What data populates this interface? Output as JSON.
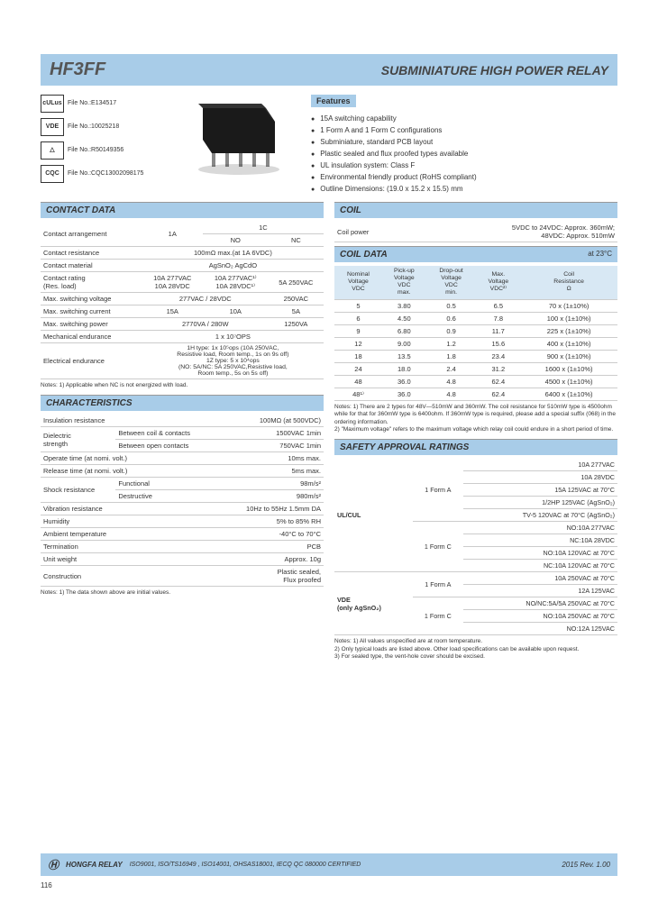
{
  "header": {
    "part_number": "HF3FF",
    "subtitle": "SUBMINIATURE HIGH POWER RELAY"
  },
  "certs": [
    {
      "logo": "cULus",
      "file": "File No.:E134517"
    },
    {
      "logo": "VDE",
      "file": "File No.:10025218"
    },
    {
      "logo": "△",
      "file": "File No.:R50149356"
    },
    {
      "logo": "CQC",
      "file": "File No.:CQC13002098175"
    }
  ],
  "features": {
    "title": "Features",
    "items": [
      "15A switching capability",
      "1 Form A and 1 Form C configurations",
      "Subminiature, standard PCB layout",
      "Plastic sealed and flux proofed types available",
      "UL insulation system: Class F",
      "Environmental friendly product (RoHS compliant)",
      "Outline Dimensions: (19.0 x 15.2 x 15.5) mm"
    ]
  },
  "contact_data": {
    "title": "CONTACT DATA",
    "rows": [
      {
        "label": "Contact arrangement",
        "c1a": "1A",
        "c1c_no": "NO",
        "c1c_nc": "NC",
        "header": "1C"
      },
      {
        "label": "Contact resistance",
        "val": "100mΩ max.(at 1A 6VDC)"
      },
      {
        "label": "Contact material",
        "val": "AgSnO₂  AgCdO"
      },
      {
        "label": "Contact rating\n(Res. load)",
        "c1": "10A 277VAC\n10A 28VDC",
        "c2": "10A 277VAC¹⁾\n10A 28VDC¹⁾",
        "c3": "5A 250VAC"
      },
      {
        "label": "Max. switching voltage",
        "c1": "277VAC / 28VDC",
        "c3": "250VAC"
      },
      {
        "label": "Max. switching current",
        "c1": "15A",
        "c2": "10A",
        "c3": "5A"
      },
      {
        "label": "Max. switching power",
        "c1": "2770VA / 280W",
        "c3": "1250VA"
      },
      {
        "label": "Mechanical endurance",
        "val": "1 x 10⁷OPS"
      },
      {
        "label": "Electrical endurance",
        "val": "1H type: 1x 10⁵ops (10A 250VAC,\nResistive load, Room temp., 1s on 9s off)\n1Z type: 5 x 10⁴ops\n(NO: 5A/NC: 5A 250VAC,Resistive load,\nRoom temp., 5s on 5s off)"
      }
    ],
    "note": "Notes: 1) Applicable when NC is not energized with load."
  },
  "coil": {
    "title": "COIL",
    "power_label": "Coil power",
    "power_val": "5VDC to 24VDC: Approx. 360mW;\n48VDC: Approx. 510mW"
  },
  "coil_data": {
    "title": "COIL DATA",
    "temp": "at 23°C",
    "headers": [
      "Nominal\nVoltage\nVDC",
      "Pick-up\nVoltage\nVDC\nmax.",
      "Drop-out\nVoltage\nVDC\nmin.",
      "Max.\nVoltage\nVDC²⁾",
      "Coil\nResistance\nΩ"
    ],
    "rows": [
      [
        "5",
        "3.80",
        "0.5",
        "6.5",
        "70 x (1±10%)"
      ],
      [
        "6",
        "4.50",
        "0.6",
        "7.8",
        "100 x (1±10%)"
      ],
      [
        "9",
        "6.80",
        "0.9",
        "11.7",
        "225 x (1±10%)"
      ],
      [
        "12",
        "9.00",
        "1.2",
        "15.6",
        "400 x (1±10%)"
      ],
      [
        "18",
        "13.5",
        "1.8",
        "23.4",
        "900 x (1±10%)"
      ],
      [
        "24",
        "18.0",
        "2.4",
        "31.2",
        "1600 x (1±10%)"
      ],
      [
        "48",
        "36.0",
        "4.8",
        "62.4",
        "4500 x (1±10%)"
      ],
      [
        "48¹⁾",
        "36.0",
        "4.8",
        "62.4",
        "6400 x (1±10%)"
      ]
    ],
    "note": "Notes: 1) There are 2 types for 48V—510mW and 360mW. The coil resistance for 510mW type is 4500ohm while for that for 360mW type is 6400ohm. If 360mW type is required, please add a special suffix (068) in the ordering information.\n2) \"Maximum voltage\" refers to the maximum voltage which relay coil could endure in a short period of time."
  },
  "characteristics": {
    "title": "CHARACTERISTICS",
    "rows": [
      {
        "label": "Insulation resistance",
        "val": "100MΩ (at 500VDC)"
      },
      {
        "label": "Dielectric\nstrength",
        "sub1_l": "Between coil & contacts",
        "sub1_v": "1500VAC 1min",
        "sub2_l": "Between open contacts",
        "sub2_v": "750VAC 1min"
      },
      {
        "label": "Operate time (at nomi. volt.)",
        "val": "10ms max."
      },
      {
        "label": "Release time (at nomi. volt.)",
        "val": "5ms max."
      },
      {
        "label": "Shock resistance",
        "sub1_l": "Functional",
        "sub1_v": "98m/s²",
        "sub2_l": "Destructive",
        "sub2_v": "980m/s²"
      },
      {
        "label": "Vibration resistance",
        "val": "10Hz to 55Hz 1.5mm DA"
      },
      {
        "label": "Humidity",
        "val": "5% to 85% RH"
      },
      {
        "label": "Ambient temperature",
        "val": "-40°C to 70°C"
      },
      {
        "label": "Termination",
        "val": "PCB"
      },
      {
        "label": "Unit weight",
        "val": "Approx. 10g"
      },
      {
        "label": "Construction",
        "val": "Plastic sealed,\nFlux proofed"
      }
    ],
    "note": "Notes: 1) The data shown above are initial values."
  },
  "safety": {
    "title": "SAFETY APPROVAL RATINGS",
    "groups": [
      {
        "agency": "UL/CUL",
        "forms": [
          {
            "form": "1 Form A",
            "vals": [
              "10A 277VAC",
              "10A 28VDC",
              "15A 125VAC at 70°C",
              "1/2HP 125VAC (AgSnO₂)",
              "TV-5 120VAC at 70°C (AgSnO₂)"
            ]
          },
          {
            "form": "1 Form C",
            "vals": [
              "NO:10A 277VAC",
              "NC:10A 28VDC",
              "NO:10A 120VAC at 70°C",
              "NC:10A 120VAC at 70°C"
            ]
          }
        ]
      },
      {
        "agency": "VDE\n(only AgSnO₂)",
        "forms": [
          {
            "form": "1 Form A",
            "vals": [
              "10A 250VAC at 70°C",
              "12A 125VAC"
            ]
          },
          {
            "form": "1 Form C",
            "vals": [
              "NO/NC:5A/5A 250VAC at 70°C",
              "NO:10A 250VAC at 70°C",
              "NO:12A 125VAC"
            ]
          }
        ]
      }
    ],
    "note": "Notes: 1) All values unspecified are at room temperature.\n2) Only typical loads are listed above. Other load specifications can be available upon request.\n3) For sealed type, the vent-hole cover should be excised."
  },
  "footer": {
    "brand": "HONGFA RELAY",
    "certs": "ISO9001, ISO/TS16949 , ISO14001, OHSAS18001, IECQ QC 080000 CERTIFIED",
    "rev": "2015 Rev. 1.00",
    "page": "116"
  }
}
